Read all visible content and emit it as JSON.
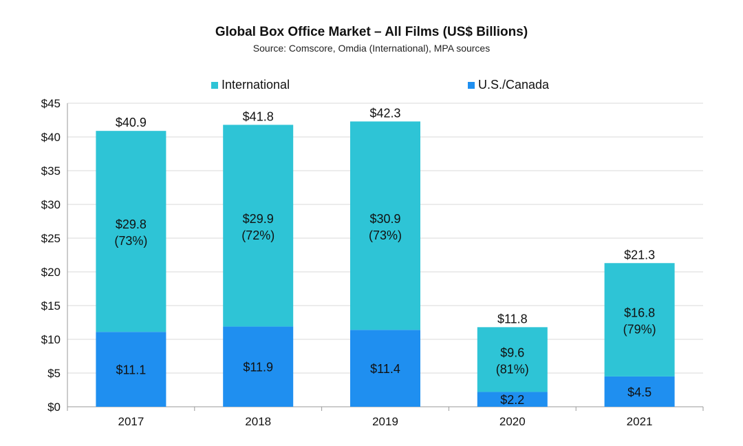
{
  "chart_data": {
    "type": "bar",
    "stacked": true,
    "title": "Global Box Office Market – All Films (US$ Billions)",
    "subtitle": "Source: Comscore, Omdia (International), MPA sources",
    "categories": [
      "2017",
      "2018",
      "2019",
      "2020",
      "2021"
    ],
    "series": [
      {
        "name": "U.S./Canada",
        "color": "#1f8ff0",
        "values": [
          11.1,
          11.9,
          11.4,
          2.2,
          4.5
        ],
        "labels": [
          "$11.1",
          "$11.9",
          "$11.4",
          "$2.2",
          "$4.5"
        ]
      },
      {
        "name": "International",
        "color": "#2ec4d6",
        "values": [
          29.8,
          29.9,
          30.9,
          9.6,
          16.8
        ],
        "labels": [
          "$29.8",
          "$29.9",
          "$30.9",
          "$9.6",
          "$16.8"
        ],
        "pct_labels": [
          "(73%)",
          "(72%)",
          "(73%)",
          "(81%)",
          "(79%)"
        ]
      }
    ],
    "totals": [
      40.9,
      41.8,
      42.3,
      11.8,
      21.3
    ],
    "total_labels": [
      "$40.9",
      "$41.8",
      "$42.3",
      "$11.8",
      "$21.3"
    ],
    "legend": [
      {
        "name": "International",
        "color": "#2ec4d6"
      },
      {
        "name": "U.S./Canada",
        "color": "#1f8ff0"
      }
    ],
    "ylim": [
      0,
      45
    ],
    "yticks": [
      0,
      5,
      10,
      15,
      20,
      25,
      30,
      35,
      40,
      45
    ],
    "ytick_labels": [
      "$0",
      "$5",
      "$10",
      "$15",
      "$20",
      "$25",
      "$30",
      "$35",
      "$40",
      "$45"
    ],
    "grid": true,
    "legend_position": "top-center"
  }
}
